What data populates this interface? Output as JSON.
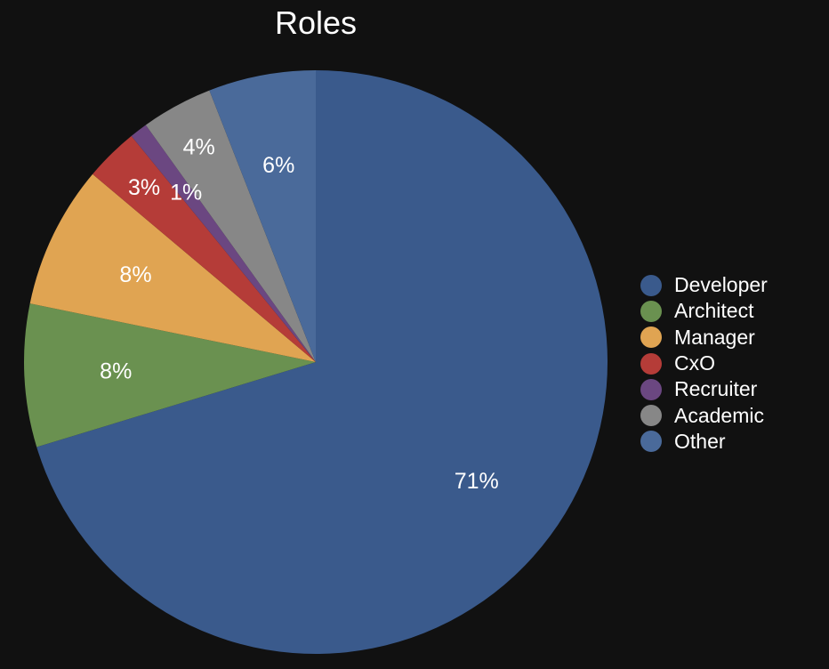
{
  "chart_data": {
    "type": "pie",
    "title": "Roles",
    "legend_position": "right",
    "start": "top",
    "direction": "clockwise",
    "slices": [
      {
        "name": "Developer",
        "value": 71,
        "label": "71%",
        "color": "#3a5a8c"
      },
      {
        "name": "Architect",
        "value": 8,
        "label": "8%",
        "color": "#6a9150"
      },
      {
        "name": "Manager",
        "value": 8,
        "label": "8%",
        "color": "#e0a452"
      },
      {
        "name": "CxO",
        "value": 3,
        "label": "3%",
        "color": "#b53c38"
      },
      {
        "name": "Recruiter",
        "value": 1,
        "label": "1%",
        "color": "#6b4781"
      },
      {
        "name": "Academic",
        "value": 4,
        "label": "4%",
        "color": "#878787"
      },
      {
        "name": "Other",
        "value": 6,
        "label": "6%",
        "color": "#4a6a9a"
      }
    ]
  }
}
